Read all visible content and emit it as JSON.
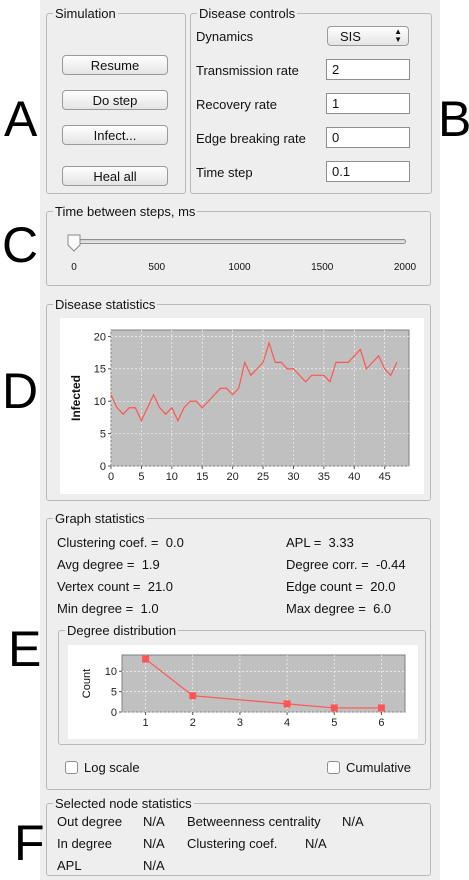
{
  "letters": [
    "A",
    "B",
    "C",
    "D",
    "E",
    "F"
  ],
  "simulation": {
    "title": "Simulation",
    "buttons": [
      "Resume",
      "Do step",
      "Infect...",
      "Heal all"
    ]
  },
  "disease_controls": {
    "title": "Disease controls",
    "dynamics_label": "Dynamics",
    "dynamics_value": "SIS",
    "fields": [
      {
        "label": "Transmission rate",
        "value": "2"
      },
      {
        "label": "Recovery rate",
        "value": "1"
      },
      {
        "label": "Edge breaking rate",
        "value": "0"
      },
      {
        "label": "Time step",
        "value": "0.1"
      }
    ]
  },
  "time_between_steps": {
    "title": "Time between steps, ms",
    "min": 0,
    "max": 2000,
    "value": 0,
    "ticks": [
      "0",
      "500",
      "1000",
      "1500",
      "2000"
    ]
  },
  "disease_statistics": {
    "title": "Disease statistics"
  },
  "chart_data": [
    {
      "type": "line",
      "ylabel": "Infected",
      "xlabel": "",
      "xlim": [
        0,
        49
      ],
      "ylim": [
        0,
        21
      ],
      "x_ticks": [
        0,
        5,
        10,
        15,
        20,
        25,
        30,
        35,
        40,
        45
      ],
      "y_ticks": [
        0,
        5,
        10,
        15,
        20
      ],
      "color": "#ff5555",
      "x": [
        0,
        1,
        2,
        3,
        4,
        5,
        6,
        7,
        8,
        9,
        10,
        11,
        12,
        13,
        14,
        15,
        16,
        17,
        18,
        19,
        20,
        21,
        22,
        23,
        24,
        25,
        26,
        27,
        28,
        29,
        30,
        31,
        32,
        33,
        34,
        35,
        36,
        37,
        38,
        39,
        40,
        41,
        42,
        43,
        44,
        45,
        46,
        47
      ],
      "y": [
        11,
        9,
        8,
        9,
        9,
        7,
        9,
        11,
        9,
        8,
        9,
        7,
        9,
        10,
        10,
        9,
        10,
        11,
        12,
        12,
        11,
        12,
        16,
        14,
        15,
        16,
        19,
        16,
        16,
        15,
        15,
        14,
        13,
        14,
        14,
        14,
        13,
        16,
        16,
        16,
        17,
        18,
        15,
        16,
        17,
        15,
        14,
        16
      ]
    },
    {
      "type": "line",
      "ylabel": "Count",
      "xlabel": "",
      "xlim": [
        0.5,
        6.5
      ],
      "ylim": [
        0,
        14
      ],
      "x_ticks": [
        1,
        2,
        3,
        4,
        5,
        6
      ],
      "y_ticks": [
        0,
        5,
        10
      ],
      "color": "#ff5555",
      "x": [
        1,
        2,
        4,
        5,
        6
      ],
      "y": [
        13,
        4,
        2,
        1,
        1
      ]
    }
  ],
  "graph_statistics": {
    "title": "Graph statistics",
    "left": [
      {
        "label": "Clustering coef. =",
        "value": "0.0"
      },
      {
        "label": "Avg degree =",
        "value": "1.9"
      },
      {
        "label": "Vertex count =",
        "value": "21.0"
      },
      {
        "label": "Min degree =",
        "value": "1.0"
      }
    ],
    "right": [
      {
        "label": "APL =",
        "value": "3.33"
      },
      {
        "label": "Degree corr. =",
        "value": "-0.44"
      },
      {
        "label": "Edge count =",
        "value": "20.0"
      },
      {
        "label": "Max degree =",
        "value": "6.0"
      }
    ],
    "degree_distribution_title": "Degree distribution",
    "log_scale_label": "Log scale",
    "cumulative_label": "Cumulative"
  },
  "selected_node": {
    "title": "Selected node statistics",
    "out_degree_label": "Out degree",
    "out_degree_value": "N/A",
    "in_degree_label": "In degree",
    "in_degree_value": "N/A",
    "apl_label": "APL",
    "apl_value": "N/A",
    "betweenness_label": "Betweenness centrality",
    "betweenness_value": "N/A",
    "clustering_label": "Clustering coef.",
    "clustering_value": "N/A"
  }
}
